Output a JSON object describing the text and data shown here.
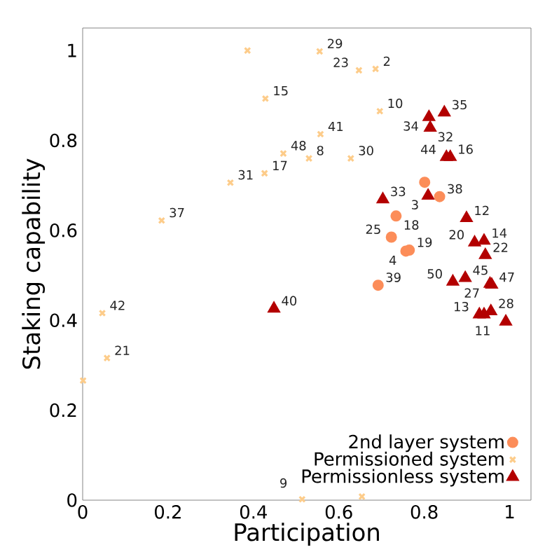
{
  "chart_data": {
    "type": "scatter",
    "xlabel": "Participation",
    "ylabel": "Staking capability",
    "xlim": [
      0,
      1.05
    ],
    "ylim": [
      0,
      1.05
    ],
    "xticks": [
      0,
      0.2,
      0.4,
      0.6,
      0.8,
      1
    ],
    "yticks": [
      0,
      0.2,
      0.4,
      0.6,
      0.8,
      1
    ],
    "grid": false,
    "legend": "bottom right",
    "series": [
      {
        "name": "2nd layer system",
        "color": "#fc8d59",
        "marker": "circle",
        "x": [
          0.801,
          0.836,
          0.734,
          0.723,
          0.757,
          0.765,
          0.692
        ],
        "values": [
          0.707,
          0.675,
          0.632,
          0.585,
          0.554,
          0.556,
          0.478
        ]
      },
      {
        "name": "Permissioned system",
        "color": "#fdcc8a",
        "marker": "cross",
        "x": [
          0.386,
          0.555,
          0.647,
          0.686,
          0.428,
          0.696,
          0.557,
          0.47,
          0.53,
          0.628,
          0.426,
          0.346,
          0.185,
          0.046,
          0.057,
          0.001,
          0.514,
          0.654
        ],
        "values": [
          1.0,
          0.998,
          0.956,
          0.959,
          0.893,
          0.865,
          0.814,
          0.771,
          0.76,
          0.76,
          0.727,
          0.706,
          0.622,
          0.416,
          0.316,
          0.266,
          0.002,
          0.008
        ]
      },
      {
        "name": "Permissionless system",
        "color": "#b30000",
        "marker": "triangle",
        "x": [
          0.811,
          0.847,
          0.814,
          0.852,
          0.861,
          0.703,
          0.809,
          0.899,
          0.918,
          0.94,
          0.943,
          0.867,
          0.896,
          0.954,
          0.958,
          0.929,
          0.94,
          0.956,
          0.991,
          0.448
        ],
        "values": [
          0.852,
          0.862,
          0.828,
          0.763,
          0.763,
          0.669,
          0.677,
          0.627,
          0.573,
          0.577,
          0.545,
          0.486,
          0.494,
          0.481,
          0.479,
          0.413,
          0.413,
          0.42,
          0.397,
          0.426
        ]
      }
    ],
    "annotations": [
      {
        "text": "38",
        "x": 0.836,
        "y": 0.675
      },
      {
        "text": "18",
        "x": 0.734,
        "y": 0.632
      },
      {
        "text": "25",
        "x": 0.723,
        "y": 0.585
      },
      {
        "text": "4",
        "x": 0.757,
        "y": 0.554
      },
      {
        "text": "19",
        "x": 0.765,
        "y": 0.556
      },
      {
        "text": "39",
        "x": 0.692,
        "y": 0.478
      },
      {
        "text": "29",
        "x": 0.555,
        "y": 0.998
      },
      {
        "text": "23",
        "x": 0.647,
        "y": 0.956
      },
      {
        "text": "2",
        "x": 0.686,
        "y": 0.959
      },
      {
        "text": "15",
        "x": 0.428,
        "y": 0.893
      },
      {
        "text": "10",
        "x": 0.696,
        "y": 0.865
      },
      {
        "text": "41",
        "x": 0.557,
        "y": 0.814
      },
      {
        "text": "48",
        "x": 0.47,
        "y": 0.771
      },
      {
        "text": "8",
        "x": 0.53,
        "y": 0.76
      },
      {
        "text": "30",
        "x": 0.628,
        "y": 0.76
      },
      {
        "text": "17",
        "x": 0.426,
        "y": 0.727
      },
      {
        "text": "31",
        "x": 0.346,
        "y": 0.706
      },
      {
        "text": "37",
        "x": 0.185,
        "y": 0.622
      },
      {
        "text": "42",
        "x": 0.046,
        "y": 0.416
      },
      {
        "text": "21",
        "x": 0.057,
        "y": 0.316
      },
      {
        "text": "9",
        "x": 0.514,
        "y": 0.002
      },
      {
        "text": "34",
        "x": 0.811,
        "y": 0.852
      },
      {
        "text": "35",
        "x": 0.847,
        "y": 0.862
      },
      {
        "text": "32",
        "x": 0.814,
        "y": 0.828
      },
      {
        "text": "44",
        "x": 0.852,
        "y": 0.763
      },
      {
        "text": "16",
        "x": 0.861,
        "y": 0.763
      },
      {
        "text": "33",
        "x": 0.703,
        "y": 0.669
      },
      {
        "text": "3",
        "x": 0.809,
        "y": 0.677
      },
      {
        "text": "12",
        "x": 0.899,
        "y": 0.627
      },
      {
        "text": "20",
        "x": 0.918,
        "y": 0.573
      },
      {
        "text": "14",
        "x": 0.94,
        "y": 0.577
      },
      {
        "text": "22",
        "x": 0.943,
        "y": 0.545
      },
      {
        "text": "50",
        "x": 0.867,
        "y": 0.486
      },
      {
        "text": "45",
        "x": 0.896,
        "y": 0.494
      },
      {
        "text": "27",
        "x": 0.954,
        "y": 0.481
      },
      {
        "text": "47",
        "x": 0.958,
        "y": 0.479
      },
      {
        "text": "13",
        "x": 0.929,
        "y": 0.413
      },
      {
        "text": "11",
        "x": 0.94,
        "y": 0.413
      },
      {
        "text": "28",
        "x": 0.956,
        "y": 0.42
      },
      {
        "text": "40",
        "x": 0.448,
        "y": 0.426
      }
    ]
  }
}
